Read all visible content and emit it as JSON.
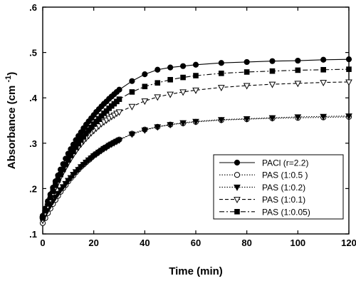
{
  "chart_data": {
    "type": "line",
    "xlabel": "Time (min)",
    "ylabel": "Absorbance (cm",
    "ylabel_sup": "-1",
    "ylabel_close": ")",
    "xlim": [
      0,
      120
    ],
    "ylim": [
      0.1,
      0.6
    ],
    "x_ticks": [
      0,
      20,
      40,
      60,
      80,
      100,
      120
    ],
    "x_tick_labels": [
      "0",
      "20",
      "40",
      "60",
      "80",
      "100",
      "120"
    ],
    "y_ticks": [
      0.1,
      0.2,
      0.3,
      0.4,
      0.5,
      0.6
    ],
    "y_tick_labels": [
      ".1",
      ".2",
      ".3",
      ".4",
      ".5",
      ".6"
    ],
    "grid": false,
    "legend_position": "bottom-right",
    "series": [
      {
        "name": "PACl (r=2.2)",
        "marker": "filled-circle",
        "line": "solid",
        "x": [
          0,
          1,
          2,
          3,
          4,
          5,
          6,
          7,
          8,
          9,
          10,
          11,
          12,
          13,
          14,
          15,
          16,
          17,
          18,
          19,
          20,
          21,
          22,
          23,
          24,
          25,
          26,
          27,
          28,
          29,
          30,
          35,
          40,
          45,
          50,
          55,
          60,
          70,
          80,
          90,
          100,
          110,
          120
        ],
        "y": [
          0.14,
          0.156,
          0.172,
          0.187,
          0.202,
          0.216,
          0.229,
          0.242,
          0.254,
          0.266,
          0.277,
          0.287,
          0.297,
          0.307,
          0.316,
          0.324,
          0.333,
          0.341,
          0.348,
          0.355,
          0.362,
          0.369,
          0.375,
          0.381,
          0.387,
          0.392,
          0.398,
          0.403,
          0.408,
          0.413,
          0.418,
          0.437,
          0.452,
          0.462,
          0.467,
          0.47,
          0.473,
          0.477,
          0.479,
          0.481,
          0.482,
          0.484,
          0.485
        ]
      },
      {
        "name": "PAS (1:0.5 )",
        "marker": "open-circle",
        "line": "dotted",
        "x": [
          0,
          1,
          2,
          3,
          4,
          5,
          6,
          7,
          8,
          9,
          10,
          11,
          12,
          13,
          14,
          15,
          16,
          17,
          18,
          19,
          20,
          21,
          22,
          23,
          24,
          25,
          26,
          27,
          28,
          29,
          30,
          35,
          40,
          45,
          50,
          55,
          60,
          70,
          80,
          90,
          100,
          110,
          120
        ],
        "y": [
          0.124,
          0.135,
          0.146,
          0.156,
          0.166,
          0.175,
          0.184,
          0.193,
          0.201,
          0.208,
          0.216,
          0.223,
          0.229,
          0.236,
          0.242,
          0.248,
          0.253,
          0.258,
          0.263,
          0.268,
          0.273,
          0.277,
          0.281,
          0.285,
          0.289,
          0.292,
          0.296,
          0.299,
          0.302,
          0.305,
          0.308,
          0.321,
          0.33,
          0.336,
          0.341,
          0.344,
          0.347,
          0.351,
          0.353,
          0.355,
          0.356,
          0.357,
          0.358
        ]
      },
      {
        "name": "PAS (1:0.2)",
        "marker": "filled-triangle-down",
        "line": "dotted",
        "x": [
          0,
          1,
          2,
          3,
          4,
          5,
          6,
          7,
          8,
          9,
          10,
          11,
          12,
          13,
          14,
          15,
          16,
          17,
          18,
          19,
          20,
          21,
          22,
          23,
          24,
          25,
          26,
          27,
          28,
          29,
          30,
          35,
          40,
          45,
          50,
          55,
          60,
          70,
          80,
          90,
          100,
          110,
          120
        ],
        "y": [
          0.133,
          0.143,
          0.153,
          0.163,
          0.172,
          0.181,
          0.189,
          0.197,
          0.204,
          0.211,
          0.218,
          0.224,
          0.231,
          0.237,
          0.242,
          0.248,
          0.253,
          0.258,
          0.263,
          0.267,
          0.272,
          0.276,
          0.28,
          0.284,
          0.288,
          0.291,
          0.295,
          0.298,
          0.301,
          0.304,
          0.307,
          0.32,
          0.329,
          0.336,
          0.341,
          0.345,
          0.348,
          0.352,
          0.354,
          0.356,
          0.358,
          0.359,
          0.36
        ]
      },
      {
        "name": "PAS (1:0.1)",
        "marker": "open-triangle-down",
        "line": "dashed",
        "x": [
          0,
          1,
          2,
          3,
          4,
          5,
          6,
          7,
          8,
          9,
          10,
          11,
          12,
          13,
          14,
          15,
          16,
          17,
          18,
          19,
          20,
          21,
          22,
          23,
          24,
          25,
          26,
          27,
          28,
          29,
          30,
          35,
          40,
          45,
          50,
          55,
          60,
          70,
          80,
          90,
          100,
          110,
          120
        ],
        "y": [
          0.13,
          0.146,
          0.161,
          0.175,
          0.189,
          0.202,
          0.214,
          0.226,
          0.237,
          0.247,
          0.257,
          0.266,
          0.275,
          0.283,
          0.291,
          0.298,
          0.305,
          0.311,
          0.317,
          0.323,
          0.328,
          0.333,
          0.338,
          0.343,
          0.347,
          0.351,
          0.355,
          0.359,
          0.362,
          0.366,
          0.369,
          0.381,
          0.393,
          0.402,
          0.408,
          0.413,
          0.417,
          0.423,
          0.427,
          0.43,
          0.432,
          0.434,
          0.435
        ]
      },
      {
        "name": "PAS (1:0.05)",
        "marker": "filled-square",
        "line": "dash-dot",
        "x": [
          0,
          1,
          2,
          3,
          4,
          5,
          6,
          7,
          8,
          9,
          10,
          11,
          12,
          13,
          14,
          15,
          16,
          17,
          18,
          19,
          20,
          21,
          22,
          23,
          24,
          25,
          26,
          27,
          28,
          29,
          30,
          35,
          40,
          45,
          50,
          55,
          60,
          70,
          80,
          90,
          100,
          110,
          120
        ],
        "y": [
          0.135,
          0.151,
          0.166,
          0.18,
          0.194,
          0.207,
          0.219,
          0.231,
          0.242,
          0.253,
          0.263,
          0.273,
          0.282,
          0.291,
          0.299,
          0.307,
          0.314,
          0.322,
          0.329,
          0.335,
          0.342,
          0.348,
          0.354,
          0.36,
          0.366,
          0.371,
          0.377,
          0.382,
          0.387,
          0.392,
          0.397,
          0.413,
          0.425,
          0.433,
          0.44,
          0.445,
          0.449,
          0.454,
          0.457,
          0.459,
          0.461,
          0.462,
          0.463
        ]
      }
    ]
  }
}
